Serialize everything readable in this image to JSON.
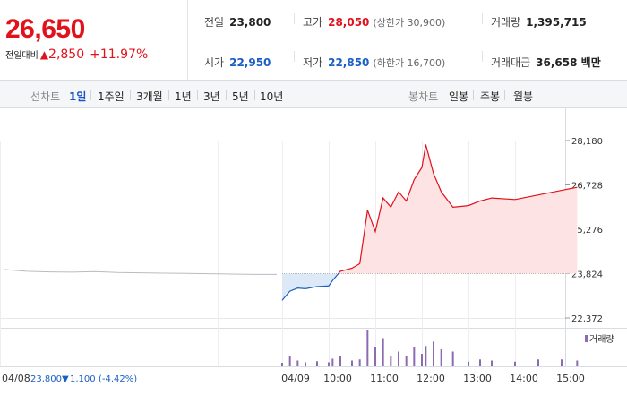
{
  "quote": {
    "price": "26,650",
    "change_label": "전일대비",
    "change_arrow": "▲",
    "change_value": "2,850",
    "change_pct": "+11.97%"
  },
  "stats": {
    "prev_close": {
      "label": "전일",
      "value": "23,800"
    },
    "open": {
      "label": "시가",
      "value": "22,950"
    },
    "high": {
      "label": "고가",
      "value": "28,050",
      "sub": "(상한가 30,900)"
    },
    "low": {
      "label": "저가",
      "value": "22,850",
      "sub": "(하한가 16,700)"
    },
    "volume": {
      "label": "거래량",
      "value": "1,395,715"
    },
    "amount": {
      "label": "거래대금",
      "value": "36,658 백만"
    }
  },
  "toolbar": {
    "line_label": "선차트",
    "periods": [
      "1일",
      "1주일",
      "3개월",
      "1년",
      "3년",
      "5년",
      "10년"
    ],
    "active_period": "1일",
    "candle_label": "봉차트",
    "candles": [
      "일봉",
      "주봉",
      "월봉"
    ]
  },
  "chart_data": {
    "type": "line",
    "y_ticks": [
      "28,180",
      "26,728",
      "25,276",
      "23,824",
      "22,372"
    ],
    "ylim": [
      22372,
      28180
    ],
    "reference_value": 23824,
    "x_ticks": [
      "04/09",
      "10:00",
      "11:00",
      "12:00",
      "13:00",
      "14:00",
      "15:00"
    ],
    "left_date": "04/08",
    "left_info": {
      "price": "23,800",
      "arrow": "▼",
      "change": "1,100",
      "pct": "(-4.42%)"
    },
    "volume_legend": "거래량",
    "colors": {
      "up": "#e1121b",
      "down": "#1a5fc6",
      "prev": "#b8bcc2",
      "fill_up": "#fde3e3",
      "fill_down": "#dde9f7",
      "volume": "#8c6bb1"
    },
    "prev_day_series": [
      23960,
      23900,
      23880,
      23870,
      23890,
      23860,
      23850,
      23840,
      23830,
      23820,
      23810,
      23800,
      23800
    ],
    "today_series": [
      {
        "t": "09:00",
        "v": 22950
      },
      {
        "t": "09:10",
        "v": 23250
      },
      {
        "t": "09:20",
        "v": 23350
      },
      {
        "t": "09:30",
        "v": 23330
      },
      {
        "t": "09:45",
        "v": 23400
      },
      {
        "t": "10:00",
        "v": 23420
      },
      {
        "t": "10:05",
        "v": 23600
      },
      {
        "t": "10:15",
        "v": 23900
      },
      {
        "t": "10:30",
        "v": 24000
      },
      {
        "t": "10:40",
        "v": 24150
      },
      {
        "t": "10:50",
        "v": 25900
      },
      {
        "t": "11:00",
        "v": 25200
      },
      {
        "t": "11:10",
        "v": 26300
      },
      {
        "t": "11:20",
        "v": 26000
      },
      {
        "t": "11:30",
        "v": 26500
      },
      {
        "t": "11:40",
        "v": 26200
      },
      {
        "t": "11:50",
        "v": 26900
      },
      {
        "t": "12:00",
        "v": 27300
      },
      {
        "t": "12:05",
        "v": 28050
      },
      {
        "t": "12:15",
        "v": 27100
      },
      {
        "t": "12:25",
        "v": 26500
      },
      {
        "t": "12:40",
        "v": 26000
      },
      {
        "t": "13:00",
        "v": 26050
      },
      {
        "t": "13:15",
        "v": 26200
      },
      {
        "t": "13:30",
        "v": 26300
      },
      {
        "t": "14:00",
        "v": 26250
      },
      {
        "t": "14:30",
        "v": 26400
      },
      {
        "t": "15:00",
        "v": 26550
      },
      {
        "t": "15:20",
        "v": 26650
      }
    ]
  }
}
